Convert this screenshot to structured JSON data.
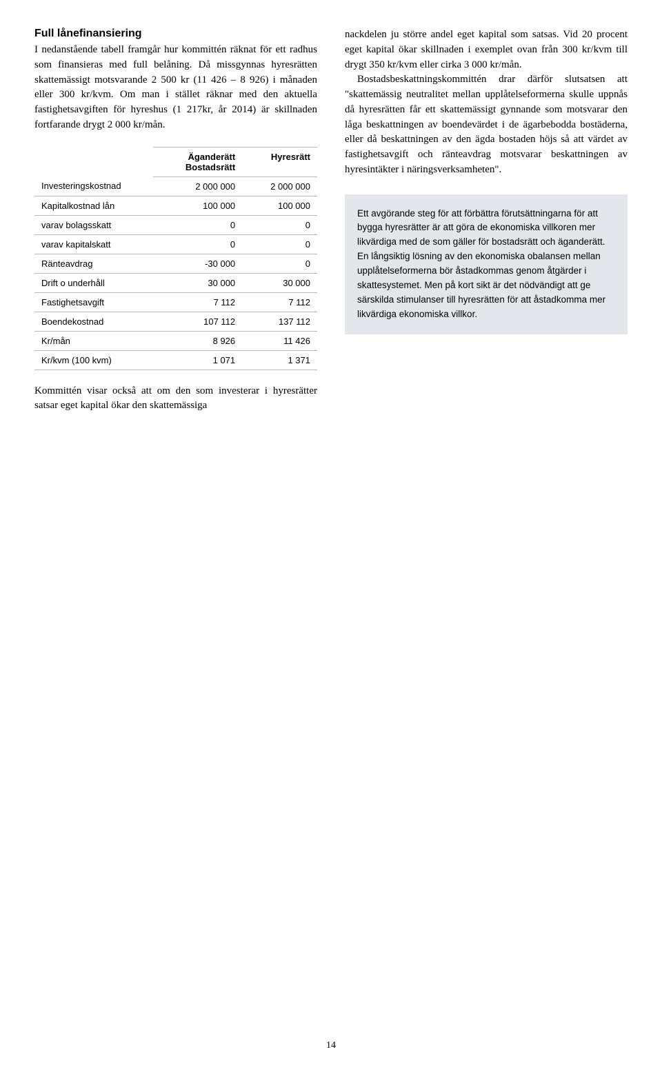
{
  "left": {
    "heading": "Full lånefinansiering",
    "para1": "I nedanstående tabell framgår hur kommittén räknat för ett radhus som finansieras med full belåning. Då missgynnas hyresrätten skattemässigt motsvarande 2 500 kr (11 426 – 8 926) i månaden eller 300 kr/kvm. Om man i stället räknar med den aktuella fastighetsavgiften för hyreshus (1 217kr, år 2014) är skillnaden fortfarande drygt 2 000 kr/mån.",
    "para2": "Kommittén visar också att om den som investerar i hyresrätter satsar eget kapital ökar den skattemässiga"
  },
  "table": {
    "header_col1": "",
    "header_col2_line1": "Äganderätt",
    "header_col2_line2": "Bostadsrätt",
    "header_col3": "Hyresrätt",
    "rows": [
      {
        "label": "Investeringskostnad",
        "c1": "2 000 000",
        "c2": "2 000 000"
      },
      {
        "label": "Kapitalkostnad lån",
        "c1": "100 000",
        "c2": "100 000"
      },
      {
        "label": "varav bolagsskatt",
        "c1": "0",
        "c2": "0"
      },
      {
        "label": "varav kapitalskatt",
        "c1": "0",
        "c2": "0"
      },
      {
        "label": "Ränteavdrag",
        "c1": "-30 000",
        "c2": "0"
      },
      {
        "label": "Drift o underhåll",
        "c1": "30 000",
        "c2": "30 000"
      },
      {
        "label": "Fastighetsavgift",
        "c1": "7 112",
        "c2": "7 112"
      },
      {
        "label": "Boendekostnad",
        "c1": "107 112",
        "c2": "137 112"
      },
      {
        "label": "Kr/mån",
        "c1": "8 926",
        "c2": "11 426"
      },
      {
        "label": "Kr/kvm (100 kvm)",
        "c1": "1 071",
        "c2": "1 371"
      }
    ]
  },
  "right": {
    "para1": "nackdelen ju större andel eget kapital som satsas. Vid 20 procent eget kapital ökar skillnaden i exemplet ovan från 300 kr/kvm till drygt 350 kr/kvm eller cirka 3 000 kr/mån.",
    "para2": "Bostadsbeskattningskommittén drar därför slutsatsen att \"skattemässig neutralitet mellan upplåtelseformerna skulle uppnås då hyresrätten får ett skattemässigt gynnande som motsvarar den låga beskattningen av boendevärdet i de ägarbebodda bostäderna, eller då beskattningen av den ägda bostaden höjs så att värdet av fastighetsavgift och ränteavdrag motsvarar beskattningen av hyresintäkter i näringsverksamheten\".",
    "highlight": "Ett avgörande steg för att förbättra förutsättningarna för att bygga hyresrätter är att göra de ekonomiska villkoren mer likvärdiga med de som gäller för bostadsrätt och äganderätt. En långsiktig lösning av den ekonomiska obalansen mellan upplåtelseformerna bör åstadkommas genom åtgärder i skattesystemet. Men på kort sikt är det nödvändigt att ge särskilda stimulanser till hyresrätten för att åstadkomma mer likvärdiga ekonomiska villkor."
  },
  "page_number": "14",
  "colors": {
    "text": "#000000",
    "background": "#ffffff",
    "highlight_bg": "#e3e7ec",
    "table_border": "#b8b8b8"
  }
}
